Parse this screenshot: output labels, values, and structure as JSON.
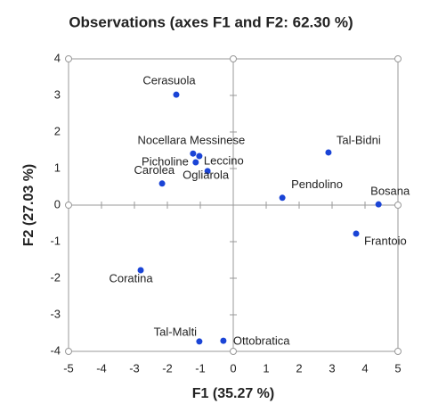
{
  "chart_data": {
    "type": "scatter",
    "title": "Observations (axes F1 and F2: 62.30 %)",
    "x_label": "F1 (35.27 %)",
    "y_label": "F2 (27.03 %)",
    "xlim": [
      -5,
      5
    ],
    "ylim": [
      -4,
      4
    ],
    "xticks": [
      -5,
      -4,
      -3,
      -2,
      -1,
      0,
      1,
      2,
      3,
      4,
      5
    ],
    "yticks": [
      -4,
      -3,
      -2,
      -1,
      0,
      1,
      2,
      3,
      4
    ],
    "color": "#1a44d6",
    "labels": [
      "Cerasuola",
      "Nocellara Messinese",
      "Leccino",
      "Picholine",
      "Ogliarola",
      "Carolea",
      "Tal-Bidni",
      "Pendolino",
      "Bosana",
      "Frantoio",
      "Coratina",
      "Tal-Malti",
      "Ottobratica"
    ],
    "x": [
      -1.73,
      -1.22,
      -1.03,
      -1.14,
      -0.78,
      -2.16,
      2.89,
      1.49,
      4.41,
      3.73,
      -2.81,
      -1.03,
      -0.3
    ],
    "y": [
      3.02,
      1.41,
      1.34,
      1.17,
      0.93,
      0.59,
      1.44,
      0.2,
      0.02,
      -0.78,
      -1.78,
      -3.73,
      -3.71
    ]
  }
}
